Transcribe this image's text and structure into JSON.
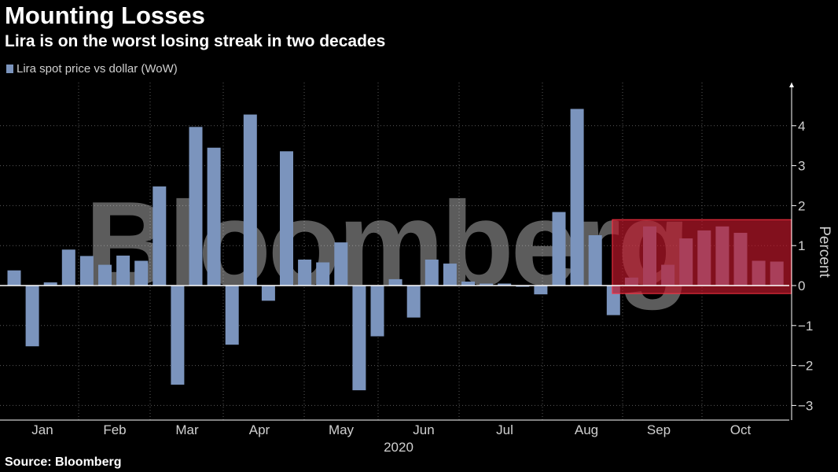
{
  "header": {
    "title": "Mounting Losses",
    "subtitle": "Lira is on the worst losing streak in two decades"
  },
  "footer": {
    "source": "Source: Bloomberg"
  },
  "watermark": {
    "text": "Bloomberg"
  },
  "chart_data": {
    "type": "bar",
    "title": "Mounting Losses",
    "subtitle": "Lira is on the worst losing streak in two decades",
    "ylabel": "Percent",
    "xlabel": "2020",
    "ylim": [
      -3.3,
      5.0
    ],
    "yticks": [
      -3,
      -2,
      -1,
      0,
      1,
      2,
      3,
      4
    ],
    "x_month_labels": [
      "Jan",
      "Feb",
      "Mar",
      "Apr",
      "May",
      "Jun",
      "Jul",
      "Aug",
      "Sep",
      "Oct"
    ],
    "grid": true,
    "legend_position": "top-left",
    "colors": {
      "bar": "#7b94bd",
      "background": "#000000",
      "highlight": "#c0182b"
    },
    "highlight": {
      "from_week": 34,
      "to_week": 42,
      "ymin": -0.2,
      "ymax": 1.65
    },
    "series": [
      {
        "name": "Lira spot price vs dollar (WoW)",
        "values": [
          0.38,
          -1.52,
          0.08,
          0.9,
          0.74,
          0.52,
          0.75,
          0.62,
          2.48,
          -2.48,
          3.97,
          3.45,
          -1.48,
          4.28,
          -0.38,
          3.36,
          0.65,
          0.58,
          1.08,
          -2.62,
          -1.27,
          0.16,
          -0.8,
          0.65,
          0.55,
          0.1,
          0.05,
          0.05,
          -0.03,
          -0.22,
          1.84,
          4.42,
          1.26,
          -0.74,
          0.2,
          1.48,
          0.52,
          1.18,
          1.38,
          1.48,
          1.32,
          0.62,
          0.6
        ]
      }
    ]
  }
}
